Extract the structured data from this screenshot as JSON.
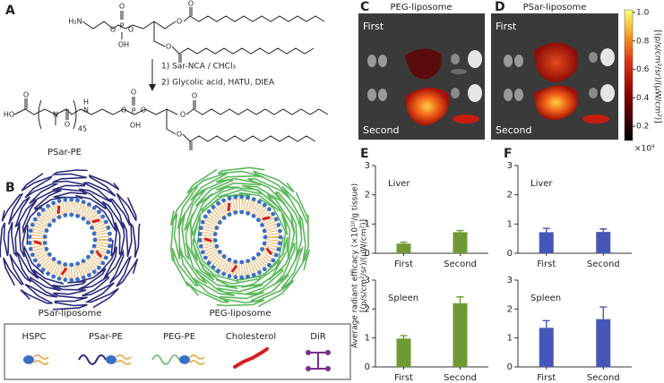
{
  "panels": {
    "a": {
      "letter": "A",
      "start_atoms": [
        "H₂N",
        "O",
        "P",
        "O",
        "OH",
        "O",
        "O",
        "O",
        "O"
      ],
      "steps": [
        "1) Sar-NCA / CHCl₃",
        "2) Glycolic acid, HATU, DIEA"
      ],
      "product_atoms": [
        "HO",
        "O",
        "N",
        "O",
        "H",
        "N",
        "O",
        "P",
        "O",
        "OH",
        "O",
        "O",
        "O",
        "O"
      ],
      "repeat": "45",
      "product": "PSar-PE"
    },
    "b": {
      "letter": "B",
      "liposomes": [
        "PSar-liposome",
        "PEG-liposome"
      ],
      "legend": [
        "HSPC",
        "PSar-PE",
        "PEG-PE",
        "Cholesterol",
        "DiR"
      ]
    },
    "c": {
      "letter": "C",
      "title": "PEG-liposome",
      "rows": [
        "First",
        "Second"
      ]
    },
    "d": {
      "letter": "D",
      "title": "PSar-liposome",
      "rows": [
        "First",
        "Second"
      ]
    },
    "e": {
      "letter": "E"
    },
    "f": {
      "letter": "F"
    },
    "y_axis_label": [
      "Average radiant efficacy (×10¹⁰/g tissue)",
      "[(p/s/cm²/sr)/(μW/cm²)]"
    ]
  },
  "chart_data": [
    {
      "type": "bar",
      "title": "Liver",
      "categories": [
        "First",
        "Second"
      ],
      "values": [
        0.33,
        0.72
      ],
      "errors": [
        0.05,
        0.06
      ],
      "color": "#6f9a33",
      "ylim": [
        0,
        3
      ],
      "yticks": [
        0,
        1,
        2,
        3
      ]
    },
    {
      "type": "bar",
      "title": "Spleen",
      "categories": [
        "First",
        "Second"
      ],
      "values": [
        0.98,
        2.2
      ],
      "errors": [
        0.1,
        0.22
      ],
      "color": "#6f9a33",
      "ylim": [
        0,
        3
      ],
      "yticks": [
        0,
        1,
        2,
        3
      ]
    },
    {
      "type": "bar",
      "title": "Liver",
      "categories": [
        "First",
        "Second"
      ],
      "values": [
        0.72,
        0.73
      ],
      "errors": [
        0.13,
        0.1
      ],
      "color": "#4656b8",
      "ylim": [
        0,
        3
      ],
      "yticks": [
        0,
        1,
        2,
        3
      ]
    },
    {
      "type": "bar",
      "title": "Spleen",
      "categories": [
        "First",
        "Second"
      ],
      "values": [
        1.35,
        1.65
      ],
      "errors": [
        0.25,
        0.42
      ],
      "color": "#4656b8",
      "ylim": [
        0,
        3
      ],
      "yticks": [
        0,
        1,
        2,
        3
      ]
    },
    {
      "type": "colorbar",
      "ylim": [
        0.1,
        1.0
      ],
      "yticks": [
        {
          "value": 1.0,
          "label": "1.0"
        },
        0.8,
        0.6,
        0.4,
        0.2
      ],
      "unit": "×10⁹",
      "ylabel": "[(p/s/cm²/sr)/(μW/cm²)]"
    }
  ]
}
